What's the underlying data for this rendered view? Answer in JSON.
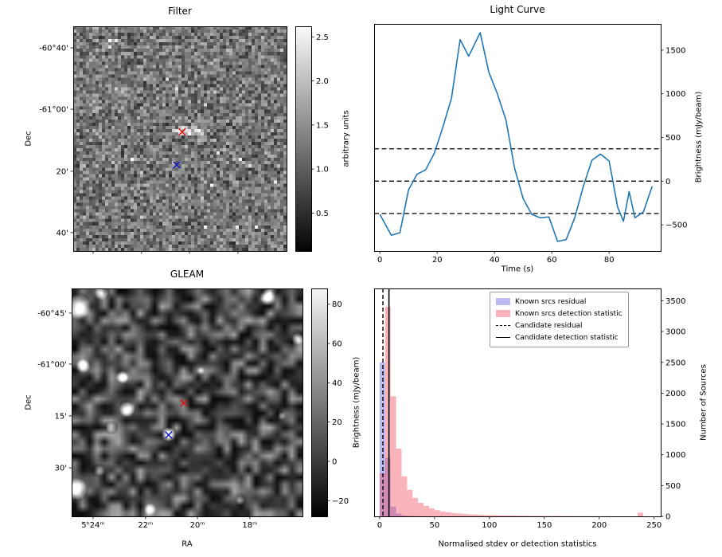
{
  "figure": {
    "background": "#ffffff"
  },
  "chart_data": [
    {
      "type": "heatmap",
      "title": "Filter",
      "xlabel": "",
      "ylabel": "Dec",
      "ytick_labels": [
        "-60°40'",
        "-61°00'",
        "20'",
        "40'"
      ],
      "colorbar": {
        "label": "arbitrary units",
        "ticks": [
          "2.5",
          "2.0",
          "1.5",
          "1.0",
          "0.5"
        ],
        "vmin": 0.07,
        "vmax": 2.62
      },
      "markers": [
        {
          "name": "candidate-position",
          "symbol": "x",
          "color": "#dd1111",
          "fx": 0.51,
          "fy": 0.47
        },
        {
          "name": "reference-position",
          "symbol": "x",
          "color": "#1414cc",
          "fx": 0.485,
          "fy": 0.617
        }
      ],
      "description": "Grayscale filtered noise map of sky region"
    },
    {
      "type": "line",
      "title": "Light Curve",
      "xlabel": "Time (s)",
      "ylabel": "Brightness (mJy/beam)",
      "line_color": "#1f77b4",
      "xlim": [
        -2,
        98
      ],
      "ylim": [
        -800,
        1800
      ],
      "xticks": [
        0,
        20,
        40,
        60,
        80
      ],
      "yticks": [
        1500,
        1000,
        500,
        0,
        -500
      ],
      "threshold_lines": [
        370,
        0,
        -370
      ],
      "x": [
        0,
        4,
        7,
        10,
        13,
        16,
        19,
        22,
        25,
        28,
        31,
        35,
        38,
        41,
        44,
        47,
        50,
        53,
        56,
        59,
        62,
        65,
        68,
        71,
        74,
        77,
        80,
        83,
        85,
        87,
        89,
        92,
        95
      ],
      "y": [
        -380,
        -620,
        -590,
        -100,
        80,
        130,
        320,
        620,
        950,
        1620,
        1430,
        1700,
        1250,
        1000,
        700,
        150,
        -200,
        -380,
        -420,
        -410,
        -690,
        -670,
        -420,
        -60,
        240,
        310,
        230,
        -300,
        -460,
        -120,
        -420,
        -350,
        -60
      ]
    },
    {
      "type": "heatmap",
      "title": "GLEAM",
      "xlabel": "RA",
      "ylabel": "Dec",
      "xtick_labels": [
        "5ʰ24ᵐ",
        "22ᵐ",
        "20ᵐ",
        "18ᵐ"
      ],
      "ytick_labels": [
        "-60°45'",
        "-61°00'",
        "15'",
        "30'"
      ],
      "colorbar": {
        "label": "Brightness (mJy/beam)",
        "ticks": [
          80,
          60,
          40,
          20,
          0,
          -20
        ],
        "vmin": -28,
        "vmax": 88
      },
      "markers": [
        {
          "name": "candidate-position",
          "symbol": "x",
          "color": "#dd1111",
          "fx": 0.486,
          "fy": 0.503
        },
        {
          "name": "reference-position",
          "symbol": "x",
          "color": "#1414cc",
          "fx": 0.42,
          "fy": 0.643
        }
      ],
      "bright_sources": [
        {
          "fx": 0.03,
          "fy": 0.08,
          "r": 16,
          "a": 1.0
        },
        {
          "fx": 0.13,
          "fy": 0.02,
          "r": 9,
          "a": 0.85
        },
        {
          "fx": 0.85,
          "fy": 0.04,
          "r": 10,
          "a": 0.95
        },
        {
          "fx": 0.98,
          "fy": 0.22,
          "r": 8,
          "a": 0.7
        },
        {
          "fx": 0.05,
          "fy": 0.34,
          "r": 9,
          "a": 0.85
        },
        {
          "fx": 0.22,
          "fy": 0.39,
          "r": 8,
          "a": 0.9
        },
        {
          "fx": 0.24,
          "fy": 0.53,
          "r": 10,
          "a": 1.0
        },
        {
          "fx": 0.17,
          "fy": 0.61,
          "r": 7,
          "a": 0.75
        },
        {
          "fx": 0.42,
          "fy": 0.64,
          "r": 9,
          "a": 1.0
        },
        {
          "fx": 0.02,
          "fy": 0.88,
          "r": 14,
          "a": 1.0
        },
        {
          "fx": 0.12,
          "fy": 0.8,
          "r": 7,
          "a": 0.6
        },
        {
          "fx": 0.34,
          "fy": 0.97,
          "r": 8,
          "a": 0.7
        },
        {
          "fx": 0.73,
          "fy": 0.93,
          "r": 6,
          "a": 0.5
        },
        {
          "fx": 0.56,
          "fy": 0.36,
          "r": 5,
          "a": 0.45
        },
        {
          "fx": 0.91,
          "fy": 0.56,
          "r": 5,
          "a": 0.4
        }
      ]
    },
    {
      "type": "bar",
      "title": "",
      "xlabel": "Normalised stdev or detection statistics",
      "ylabel": "Number of Sources",
      "xlim": [
        -5,
        256
      ],
      "ylim": [
        0,
        3700
      ],
      "xticks": [
        0,
        50,
        100,
        150,
        200,
        250
      ],
      "yticks": [
        0,
        500,
        1000,
        1500,
        2000,
        2500,
        3000,
        3500
      ],
      "bin_start": 0,
      "bin_width": 5,
      "series": [
        {
          "name": "Known srcs residual",
          "color": "#2a2ad4",
          "opacity": 0.32,
          "values": [
            2500,
            950,
            160,
            45,
            15,
            6,
            3,
            2,
            1,
            1,
            0,
            0,
            0,
            0,
            0,
            0,
            0,
            0,
            0,
            0,
            0,
            0,
            0,
            0,
            0,
            0,
            0,
            0,
            0,
            0,
            0,
            0,
            0,
            0,
            0,
            0,
            0,
            0,
            0,
            0,
            0,
            0,
            0,
            0,
            0,
            0,
            0,
            0,
            0,
            0
          ]
        },
        {
          "name": "Known srcs detection statistic",
          "color": "#ef3b4b",
          "opacity": 0.38,
          "values": [
            700,
            3400,
            1950,
            1100,
            650,
            430,
            300,
            220,
            170,
            130,
            100,
            80,
            65,
            55,
            46,
            40,
            34,
            29,
            25,
            22,
            19,
            17,
            15,
            13,
            12,
            10,
            9,
            8,
            7,
            7,
            6,
            5,
            5,
            4,
            4,
            3,
            3,
            3,
            2,
            2,
            2,
            2,
            1,
            1,
            1,
            1,
            1,
            60,
            1,
            0
          ]
        }
      ],
      "candidate_residual": 3,
      "candidate_detection_statistic": 8.5,
      "legend": [
        "Known srcs residual",
        "Known srcs detection statistic",
        "Candidate residual",
        "Candidate detection statistic"
      ]
    }
  ]
}
